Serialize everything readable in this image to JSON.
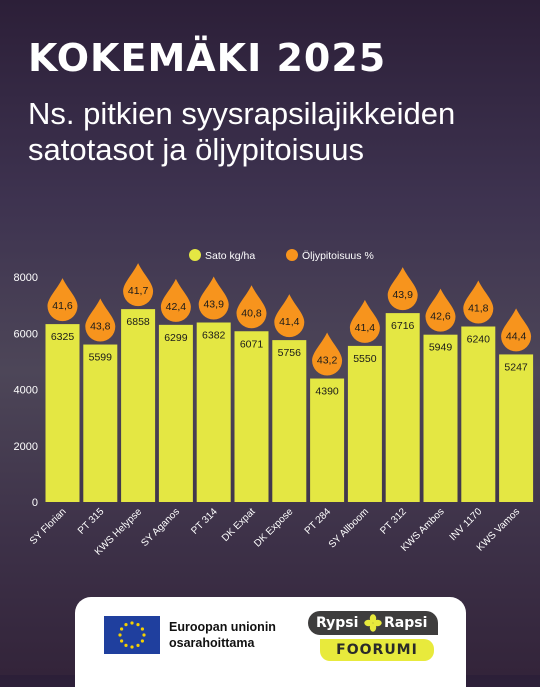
{
  "header": {
    "title": "KOKEMÄKI 2025",
    "subtitle": "Ns. pitkien syysrapsilajikkeiden satotasot ja öljypitoisuus"
  },
  "footer": {
    "eu_line1": "Euroopan unionin",
    "eu_line2": "osarahoittama",
    "forum_word1": "Rypsi",
    "forum_word2": "Rapsi",
    "forum_word3": "FOORUMI"
  },
  "colors": {
    "bar": "#e4e743",
    "drop": "#f7941d",
    "axis_text": "#ffffff"
  },
  "chart_data": {
    "type": "bar",
    "categories": [
      "SY Florian",
      "PT 315",
      "KWS Helypse",
      "SY Aganos",
      "PT 314",
      "DK Expat",
      "DK Expose",
      "PT 284",
      "SY Allboom",
      "PT 312",
      "KWS Ambos",
      "INV 1170",
      "KWS Vamos"
    ],
    "series": [
      {
        "name": "Sato kg/ha",
        "values": [
          6325,
          5599,
          6858,
          6299,
          6382,
          6071,
          5756,
          4390,
          5550,
          6716,
          5949,
          6240,
          5247
        ],
        "labels": [
          "6325",
          "5599",
          "6858",
          "6299",
          "6382",
          "6071",
          "5756",
          "4390",
          "5550",
          "6716",
          "5949",
          "6240",
          "5247"
        ]
      },
      {
        "name": "Öljypitoisuus %",
        "values": [
          41.6,
          43.8,
          41.7,
          42.4,
          43.9,
          40.8,
          41.4,
          43.2,
          41.4,
          43.9,
          42.6,
          41.8,
          44.4
        ],
        "labels": [
          "41,6",
          "43,8",
          "41,7",
          "42,4",
          "43,9",
          "40,8",
          "41,4",
          "43,2",
          "41,4",
          "43,9",
          "42,6",
          "41,8",
          "44,4"
        ]
      }
    ],
    "yticks": [
      "0",
      "2000",
      "4000",
      "6000",
      "8000"
    ],
    "ylim": [
      0,
      8000
    ],
    "legend_position": "top-center",
    "grid": false
  }
}
